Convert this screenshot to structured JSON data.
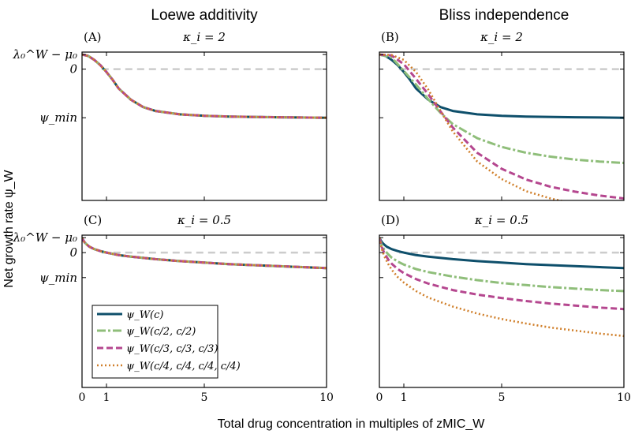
{
  "figure": {
    "column_titles": [
      "Loewe additivity",
      "Bliss independence"
    ],
    "ylabel": "Net growth rate ψ_W",
    "xlabel": "Total drug concentration in multiples of zMIC_W",
    "ytick_labels": [
      "λ₀^W − μ₀",
      "0",
      "ψ_min"
    ]
  },
  "legend": {
    "entries": [
      {
        "label": "ψ_W(c)",
        "color": "#0e4f6b",
        "style": "solid"
      },
      {
        "label": "ψ_W(c/2, c/2)",
        "color": "#8fbe7a",
        "style": "dashdot"
      },
      {
        "label": "ψ_W(c/3, c/3, c/3)",
        "color": "#b5478f",
        "style": "dashed"
      },
      {
        "label": "ψ_W(c/4, c/4, c/4, c/4)",
        "color": "#d07f2a",
        "style": "dotted"
      }
    ]
  },
  "chart_data": [
    {
      "panel": "(A)",
      "title": "κ_i = 2",
      "type": "line",
      "xlabel": "Total drug concentration in multiples of zMIC_W",
      "ylabel": "Net growth rate ψ_W",
      "xlim": [
        0,
        10
      ],
      "ylim": [
        -2.7,
        0.35
      ],
      "xticks": [
        0,
        1,
        5,
        10
      ],
      "yticks": [
        {
          "value": 0.3,
          "label": "λ₀^W − μ₀"
        },
        {
          "value": 0,
          "label": "0"
        },
        {
          "value": -1,
          "label": "ψ_min"
        }
      ],
      "zero_line": true,
      "series": [
        {
          "name": "ψ_W(c)",
          "x": [
            0,
            0.25,
            0.5,
            0.75,
            1,
            1.25,
            1.5,
            2,
            2.5,
            3,
            4,
            5,
            6,
            8,
            10
          ],
          "y": [
            0.3,
            0.27,
            0.19,
            0.08,
            -0.06,
            -0.22,
            -0.4,
            -0.63,
            -0.78,
            -0.86,
            -0.93,
            -0.96,
            -0.975,
            -0.99,
            -1.0
          ]
        },
        {
          "name": "ψ_W(c/2, c/2)",
          "x": [
            0,
            0.25,
            0.5,
            0.75,
            1,
            1.25,
            1.5,
            2,
            2.5,
            3,
            4,
            5,
            6,
            8,
            10
          ],
          "y": [
            0.3,
            0.27,
            0.19,
            0.08,
            -0.06,
            -0.22,
            -0.4,
            -0.63,
            -0.78,
            -0.86,
            -0.93,
            -0.96,
            -0.975,
            -0.99,
            -1.0
          ]
        },
        {
          "name": "ψ_W(c/3, c/3, c/3)",
          "x": [
            0,
            0.25,
            0.5,
            0.75,
            1,
            1.25,
            1.5,
            2,
            2.5,
            3,
            4,
            5,
            6,
            8,
            10
          ],
          "y": [
            0.3,
            0.27,
            0.19,
            0.08,
            -0.06,
            -0.22,
            -0.4,
            -0.63,
            -0.78,
            -0.86,
            -0.93,
            -0.96,
            -0.975,
            -0.99,
            -1.0
          ]
        },
        {
          "name": "ψ_W(c/4, c/4, c/4, c/4)",
          "x": [
            0,
            0.25,
            0.5,
            0.75,
            1,
            1.25,
            1.5,
            2,
            2.5,
            3,
            4,
            5,
            6,
            8,
            10
          ],
          "y": [
            0.3,
            0.27,
            0.19,
            0.08,
            -0.06,
            -0.22,
            -0.4,
            -0.63,
            -0.78,
            -0.86,
            -0.93,
            -0.96,
            -0.975,
            -0.99,
            -1.0
          ]
        }
      ]
    },
    {
      "panel": "(B)",
      "title": "κ_i = 2",
      "type": "line",
      "xlabel": "Total drug concentration in multiples of zMIC_W",
      "ylabel": "Net growth rate ψ_W",
      "xlim": [
        0,
        10
      ],
      "ylim": [
        -2.7,
        0.35
      ],
      "xticks": [
        0,
        1,
        5,
        10
      ],
      "yticks": [
        {
          "value": 0.3,
          "label": "λ₀^W − μ₀"
        },
        {
          "value": 0,
          "label": "0"
        },
        {
          "value": -1,
          "label": "ψ_min"
        }
      ],
      "zero_line": true,
      "series": [
        {
          "name": "ψ_W(c)",
          "x": [
            0,
            0.25,
            0.5,
            0.75,
            1,
            1.25,
            1.5,
            2,
            2.5,
            3,
            4,
            5,
            6,
            8,
            10
          ],
          "y": [
            0.3,
            0.27,
            0.19,
            0.08,
            -0.06,
            -0.22,
            -0.4,
            -0.63,
            -0.78,
            -0.86,
            -0.93,
            -0.96,
            -0.975,
            -0.99,
            -1.0
          ]
        },
        {
          "name": "ψ_W(c/2, c/2)",
          "x": [
            0,
            0.5,
            1,
            1.5,
            2,
            2.5,
            3,
            4,
            5,
            6,
            7,
            8,
            9,
            10
          ],
          "y": [
            0.3,
            0.24,
            -0.04,
            -0.32,
            -0.62,
            -0.9,
            -1.13,
            -1.42,
            -1.6,
            -1.72,
            -1.8,
            -1.86,
            -1.9,
            -1.93
          ]
        },
        {
          "name": "ψ_W(c/3, c/3, c/3)",
          "x": [
            0,
            0.5,
            1,
            1.5,
            2,
            2.5,
            3,
            4,
            5,
            6,
            7,
            8,
            9,
            10
          ],
          "y": [
            0.3,
            0.28,
            0.1,
            -0.2,
            -0.52,
            -0.87,
            -1.2,
            -1.72,
            -2.05,
            -2.27,
            -2.42,
            -2.52,
            -2.6,
            -2.66
          ]
        },
        {
          "name": "ψ_W(c/4, c/4, c/4, c/4)",
          "x": [
            0,
            0.5,
            1,
            1.5,
            2,
            2.5,
            3,
            4,
            5,
            6,
            7,
            8,
            8.2
          ],
          "y": [
            0.3,
            0.29,
            0.19,
            -0.06,
            -0.42,
            -0.86,
            -1.28,
            -1.9,
            -2.26,
            -2.51,
            -2.66,
            -2.77,
            -2.8
          ]
        }
      ]
    },
    {
      "panel": "(C)",
      "title": "κ_i = 0.5",
      "type": "line",
      "xlabel": "Total drug concentration in multiples of zMIC_W",
      "ylabel": "Net growth rate ψ_W",
      "xlim": [
        0,
        10
      ],
      "ylim": [
        -2.7,
        0.35
      ],
      "xticks": [
        0,
        1,
        5,
        10
      ],
      "yticks": [
        {
          "value": 0.3,
          "label": "λ₀^W − μ₀"
        },
        {
          "value": 0,
          "label": "0"
        },
        {
          "value": -0.5,
          "label": "ψ_min"
        }
      ],
      "zero_line": true,
      "series": [
        {
          "name": "ψ_W(c)",
          "x": [
            0,
            0.05,
            0.1,
            0.2,
            0.3,
            0.5,
            0.75,
            1,
            1.5,
            2,
            3,
            4,
            5,
            6,
            7,
            8,
            9,
            10
          ],
          "y": [
            0.3,
            0.25,
            0.21,
            0.16,
            0.12,
            0.07,
            0.03,
            0.0,
            -0.05,
            -0.08,
            -0.13,
            -0.17,
            -0.2,
            -0.23,
            -0.25,
            -0.27,
            -0.29,
            -0.31
          ]
        },
        {
          "name": "ψ_W(c/2, c/2)",
          "x": [
            0,
            0.05,
            0.1,
            0.2,
            0.3,
            0.5,
            0.75,
            1,
            1.5,
            2,
            3,
            4,
            5,
            6,
            7,
            8,
            9,
            10
          ],
          "y": [
            0.3,
            0.25,
            0.21,
            0.16,
            0.12,
            0.07,
            0.03,
            0.0,
            -0.05,
            -0.08,
            -0.13,
            -0.17,
            -0.2,
            -0.23,
            -0.25,
            -0.27,
            -0.29,
            -0.31
          ]
        },
        {
          "name": "ψ_W(c/3, c/3, c/3)",
          "x": [
            0,
            0.05,
            0.1,
            0.2,
            0.3,
            0.5,
            0.75,
            1,
            1.5,
            2,
            3,
            4,
            5,
            6,
            7,
            8,
            9,
            10
          ],
          "y": [
            0.3,
            0.25,
            0.21,
            0.16,
            0.12,
            0.07,
            0.03,
            0.0,
            -0.05,
            -0.08,
            -0.13,
            -0.17,
            -0.2,
            -0.23,
            -0.25,
            -0.27,
            -0.29,
            -0.31
          ]
        },
        {
          "name": "ψ_W(c/4, c/4, c/4, c/4)",
          "x": [
            0,
            0.05,
            0.1,
            0.2,
            0.3,
            0.5,
            0.75,
            1,
            1.5,
            2,
            3,
            4,
            5,
            6,
            7,
            8,
            9,
            10
          ],
          "y": [
            0.3,
            0.25,
            0.21,
            0.16,
            0.12,
            0.07,
            0.03,
            0.0,
            -0.05,
            -0.08,
            -0.13,
            -0.17,
            -0.2,
            -0.23,
            -0.25,
            -0.27,
            -0.29,
            -0.31
          ]
        }
      ]
    },
    {
      "panel": "(D)",
      "title": "κ_i = 0.5",
      "type": "line",
      "xlabel": "Total drug concentration in multiples of zMIC_W",
      "ylabel": "Net growth rate ψ_W",
      "xlim": [
        0,
        10
      ],
      "ylim": [
        -2.7,
        0.35
      ],
      "xticks": [
        0,
        1,
        5,
        10
      ],
      "yticks": [
        {
          "value": 0.3,
          "label": "λ₀^W − μ₀"
        },
        {
          "value": 0,
          "label": "0"
        },
        {
          "value": -0.5,
          "label": "ψ_min"
        }
      ],
      "zero_line": true,
      "series": [
        {
          "name": "ψ_W(c)",
          "x": [
            0,
            0.05,
            0.1,
            0.2,
            0.3,
            0.5,
            0.75,
            1,
            1.5,
            2,
            3,
            4,
            5,
            6,
            7,
            8,
            9,
            10
          ],
          "y": [
            0.3,
            0.25,
            0.21,
            0.16,
            0.12,
            0.07,
            0.03,
            0.0,
            -0.05,
            -0.08,
            -0.13,
            -0.17,
            -0.2,
            -0.23,
            -0.25,
            -0.27,
            -0.29,
            -0.31
          ]
        },
        {
          "name": "ψ_W(c/2, c/2)",
          "x": [
            0,
            0.05,
            0.1,
            0.2,
            0.35,
            0.5,
            0.75,
            1,
            1.5,
            2,
            3,
            4,
            5,
            6,
            7,
            8,
            9,
            10
          ],
          "y": [
            0.3,
            0.22,
            0.15,
            0.06,
            -0.03,
            -0.1,
            -0.18,
            -0.24,
            -0.33,
            -0.39,
            -0.48,
            -0.55,
            -0.61,
            -0.65,
            -0.69,
            -0.72,
            -0.75,
            -0.77
          ]
        },
        {
          "name": "ψ_W(c/3, c/3, c/3)",
          "x": [
            0,
            0.05,
            0.1,
            0.2,
            0.35,
            0.5,
            0.75,
            1,
            1.5,
            2,
            3,
            4,
            5,
            6,
            7,
            8,
            9,
            10
          ],
          "y": [
            0.3,
            0.2,
            0.11,
            -0.01,
            -0.13,
            -0.22,
            -0.33,
            -0.41,
            -0.53,
            -0.62,
            -0.75,
            -0.84,
            -0.91,
            -0.97,
            -1.02,
            -1.06,
            -1.1,
            -1.13
          ]
        },
        {
          "name": "ψ_W(c/4, c/4, c/4, c/4)",
          "x": [
            0,
            0.05,
            0.1,
            0.2,
            0.35,
            0.5,
            0.75,
            1,
            1.5,
            2,
            3,
            4,
            5,
            6,
            7,
            8,
            9,
            10
          ],
          "y": [
            0.3,
            0.18,
            0.07,
            -0.07,
            -0.22,
            -0.34,
            -0.49,
            -0.6,
            -0.77,
            -0.9,
            -1.08,
            -1.22,
            -1.33,
            -1.42,
            -1.5,
            -1.56,
            -1.62,
            -1.67
          ]
        }
      ]
    }
  ]
}
